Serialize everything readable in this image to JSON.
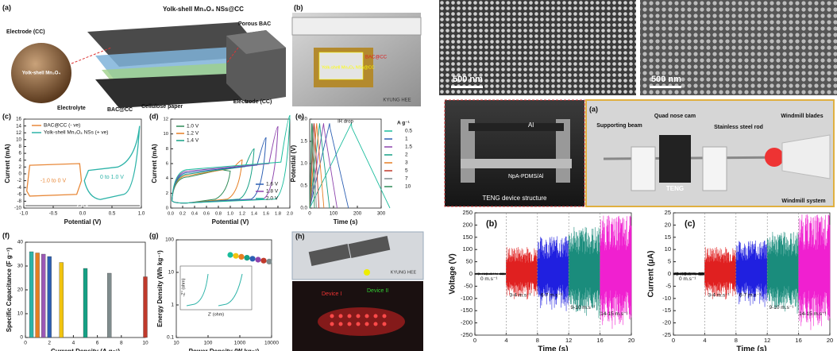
{
  "fig_a": {
    "label": "(a)",
    "title": "Yolk-shell Mn₃O₄ NSs@CC",
    "electrode_top": "Electrode (CC)",
    "sphere": "Yolk-shell Mn₃O₄",
    "porous": "Porous BAC",
    "electrode_right": "Electrode (CC)",
    "electrolyte": "Electrolyte",
    "bac": "BAC@CC",
    "paper": "Cellulose paper"
  },
  "fig_b": {
    "label": "(b)",
    "device": "Yolk-shell Mn₃O₄ NSs@CC",
    "bac": "BAC@CC",
    "logo": "KYUNG HEE"
  },
  "fig_c": {
    "label": "(c)",
    "y_label": "Current (mA)",
    "x_label": "Potential (V)",
    "xticks": [
      "-1.0",
      "-0.5",
      "0.0",
      "0.5",
      "1.0"
    ],
    "yticks": [
      "-10",
      "-8",
      "-6",
      "-4",
      "-2",
      "0",
      "2",
      "4",
      "6",
      "8",
      "10",
      "12",
      "14",
      "16"
    ],
    "legend": [
      "BAC@CC (- ve)",
      "Yolk-shell Mn₃O₄ NSs (+ ve)"
    ],
    "range_neg": "-1.0 to 0 V",
    "range_pos": "0 to 1.0 V",
    "window": "2.0 V"
  },
  "fig_d": {
    "label": "(d)",
    "y_label": "Current (mA)",
    "x_label": "Potential (V)",
    "xticks": [
      "0.0",
      "0.2",
      "0.4",
      "0.6",
      "0.8",
      "1.0",
      "1.2",
      "1.4",
      "1.6",
      "1.8",
      "2.0"
    ],
    "yticks": [
      "0",
      "2",
      "4",
      "6",
      "8",
      "10",
      "12"
    ],
    "legend": [
      "1.0 V",
      "1.2 V",
      "1.4 V",
      "1.6 V",
      "1.8 V",
      "2.0 V"
    ]
  },
  "fig_e": {
    "label": "(e)",
    "y_label": "Potential (V)",
    "x_label": "Time (s)",
    "xticks": [
      "0",
      "100",
      "200",
      "300"
    ],
    "yticks": [
      "0.0",
      "0.5",
      "1.0",
      "1.5",
      "2.0"
    ],
    "ir_drop": "IR drop",
    "legend_title": "A g⁻¹",
    "legend": [
      "0.5",
      "1",
      "1.5",
      "2",
      "3",
      "5",
      "7",
      "10"
    ]
  },
  "fig_f": {
    "label": "(f)",
    "y_label": "Specific Capacitance (F g⁻¹)",
    "x_label": "Current Density (A g⁻¹)",
    "xticks": [
      "0",
      "2",
      "4",
      "6",
      "8",
      "10"
    ],
    "yticks": [
      "0",
      "10",
      "20",
      "30",
      "40"
    ],
    "x": [
      0.5,
      1,
      1.5,
      2,
      3,
      5,
      7,
      10
    ],
    "values": [
      36,
      35.5,
      35,
      34,
      31.5,
      29,
      27,
      25.5
    ]
  },
  "fig_g": {
    "label": "(g)",
    "y_label": "Energy Density (Wh kg⁻¹)",
    "x_label": "Power Density (W kg⁻¹)",
    "xticks": [
      "10",
      "100",
      "1000",
      "10000"
    ],
    "yticks": [
      "0.1",
      "1",
      "10",
      "100"
    ],
    "inset_x": "Z' (ohm)",
    "inset_y": "-Z'' (ohm)"
  },
  "fig_h": {
    "label": "(h)",
    "device_1": "Device I",
    "device_2": "Device II",
    "logo": "KYUNG HEE"
  },
  "sem": {
    "scale_left": "500 nm",
    "scale_right": "500 nm"
  },
  "device_photo": {
    "electrode": "Al",
    "film": "NpA-PDMS/Al",
    "caption": "TENG device structure"
  },
  "windmill": {
    "label": "(a)",
    "beam": "Supporting beam",
    "cam": "Quad nose cam",
    "rod": "Stainless steel rod",
    "blades": "Windmill blades",
    "teng": "TENG",
    "caption": "Windmill system"
  },
  "teng_voltage": {
    "label": "(b)",
    "y_label": "Voltage (V)",
    "x_label": "Time (s)",
    "xticks": [
      "0",
      "4",
      "8",
      "12",
      "16",
      "20"
    ],
    "yticks": [
      "-250",
      "-200",
      "-150",
      "-100",
      "-50",
      "0",
      "50",
      "100",
      "150",
      "200",
      "250"
    ],
    "speeds": [
      "0 m.s⁻¹",
      "3-4 m.s⁻¹",
      "6-7 m.s⁻¹",
      "9-10 m.s⁻¹",
      "14-15 m.s⁻¹"
    ]
  },
  "teng_current": {
    "label": "(c)",
    "y_label": "Current (μA)",
    "x_label": "Time (s)",
    "xticks": [
      "0",
      "4",
      "8",
      "12",
      "16",
      "20"
    ],
    "yticks": [
      "-25",
      "-20",
      "-15",
      "-10",
      "-5",
      "0",
      "5",
      "10",
      "15",
      "20",
      "25"
    ],
    "speeds": [
      "0 m.s⁻¹",
      "3-4 m.s⁻¹",
      "6-7 m.s⁻¹",
      "9-10 m.s⁻¹",
      "14-15 m.s⁻¹"
    ]
  }
}
